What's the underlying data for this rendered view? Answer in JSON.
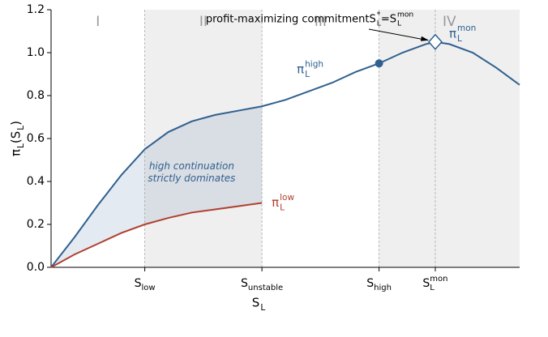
{
  "chart_data": {
    "type": "line",
    "xlim": [
      0,
      4
    ],
    "ylim": [
      0,
      1.2
    ],
    "yticks": [
      {
        "value": 0,
        "label": "0.0"
      },
      {
        "value": 0.2,
        "label": "0.2"
      },
      {
        "value": 0.4,
        "label": "0.4"
      },
      {
        "value": 0.6,
        "label": "0.6"
      },
      {
        "value": 0.8,
        "label": "0.8"
      },
      {
        "value": 1.0,
        "label": "1.0"
      },
      {
        "value": 1.2,
        "label": "1.2"
      }
    ],
    "xticks": [
      {
        "value": 0.8,
        "label": "S",
        "sub": "low"
      },
      {
        "value": 1.8,
        "label": "S",
        "sub": "unstable"
      },
      {
        "value": 2.8,
        "label": "S",
        "sub": "high"
      },
      {
        "value": 3.28,
        "label": "S",
        "sub": "L",
        "sup": "mon"
      }
    ],
    "xlabel": {
      "base": "S",
      "sub": "L"
    },
    "ylabel": [
      {
        "base": "π",
        "sub": "L"
      },
      "(",
      {
        "base": "S",
        "sub": "L"
      },
      ")"
    ],
    "regions": [
      {
        "label": "I",
        "range": [
          0,
          0.8
        ],
        "shaded": false
      },
      {
        "label": "II",
        "range": [
          0.8,
          1.8
        ],
        "shaded": true
      },
      {
        "label": "III",
        "range": [
          1.8,
          2.8
        ],
        "shaded": false
      },
      {
        "label": "IV",
        "range": [
          2.8,
          4
        ],
        "shaded": true
      }
    ],
    "series": [
      {
        "name": {
          "base": "π",
          "sub": "L",
          "sup": "high"
        },
        "color": "#30608f",
        "x": [
          0,
          0.2,
          0.4,
          0.6,
          0.8,
          1.0,
          1.2,
          1.4,
          1.6,
          1.8,
          2.0,
          2.2,
          2.4,
          2.6,
          2.8,
          3.0,
          3.2,
          3.28,
          3.4,
          3.6,
          3.8,
          4.0
        ],
        "values": [
          0,
          0.14,
          0.29,
          0.43,
          0.55,
          0.63,
          0.68,
          0.71,
          0.73,
          0.75,
          0.78,
          0.82,
          0.86,
          0.91,
          0.95,
          1.0,
          1.04,
          1.05,
          1.04,
          1.0,
          0.93,
          0.85
        ]
      },
      {
        "name": {
          "base": "π",
          "sub": "L",
          "sup": "low"
        },
        "color": "#b0402f",
        "x": [
          0,
          0.2,
          0.4,
          0.6,
          0.8,
          1.0,
          1.2,
          1.4,
          1.6,
          1.8
        ],
        "values": [
          0,
          0.06,
          0.11,
          0.16,
          0.2,
          0.23,
          0.255,
          0.27,
          0.285,
          0.3
        ]
      }
    ],
    "markers": [
      {
        "series": 0,
        "index": 14,
        "shape": "circle"
      },
      {
        "series": 0,
        "index": 17,
        "shape": "diamond",
        "label": {
          "base": "π",
          "sub": "L",
          "sup": "mon"
        }
      }
    ],
    "fill_text": [
      "high continuation",
      "strictly dominates"
    ],
    "annotation": [
      "profit-maximizing commitment ",
      {
        "base": "S",
        "sub": "L",
        "sup": "*"
      },
      " = ",
      {
        "base": "S",
        "sub": "L",
        "sup": "mon"
      }
    ]
  }
}
